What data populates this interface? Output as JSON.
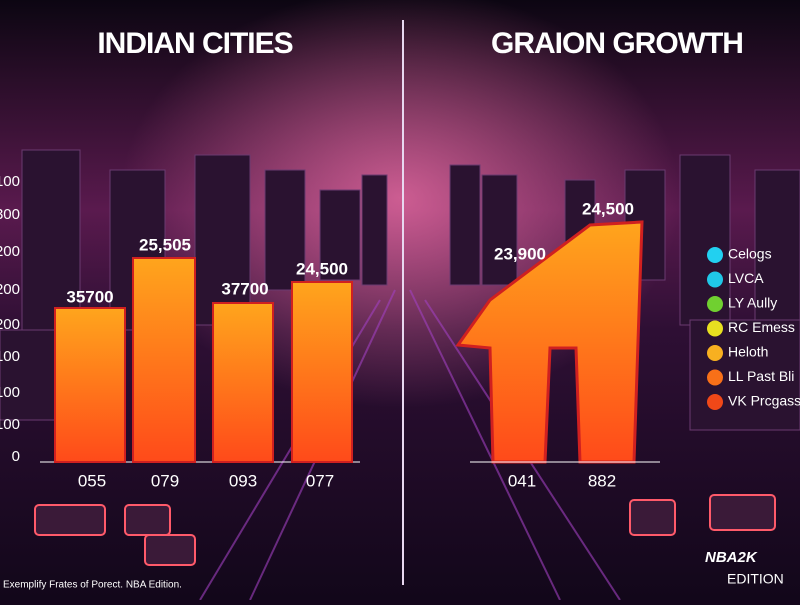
{
  "left_panel": {
    "title": "INDIAN CITIES",
    "axis_labels": [
      "100",
      "300",
      "200",
      "200",
      "200",
      "100",
      "100",
      "100",
      "0"
    ],
    "bars": [
      {
        "label": "35700",
        "category": "055"
      },
      {
        "label": "25,505",
        "category": "079"
      },
      {
        "label": "37700",
        "category": "093"
      },
      {
        "label": "24,500",
        "category": "077"
      }
    ]
  },
  "right_panel": {
    "title": "GRAION GROWTH",
    "labels": [
      "23,900",
      "24,500"
    ],
    "categories": [
      "041",
      "882"
    ],
    "legend": [
      "Celogs",
      "LVCA",
      "LY Aully",
      "RC Emess",
      "Heloth",
      "LL Past Bli",
      "VK Prcgass"
    ]
  },
  "footer": {
    "caption": "Exemplify Frates of Porect. NBA Edition.",
    "logo": "NBA2K",
    "logo_sub": "EDITION"
  }
}
